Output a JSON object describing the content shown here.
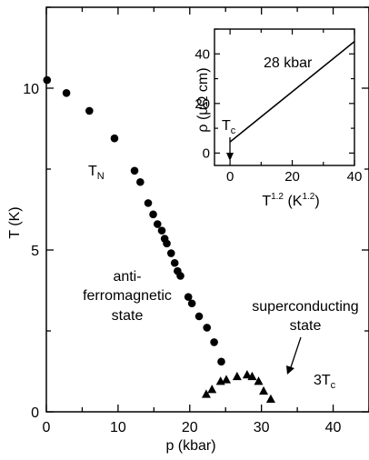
{
  "chart_data": [
    {
      "type": "scatter",
      "xlabel": "p (kbar)",
      "ylabel": "T (K)",
      "xlim": [
        0,
        45
      ],
      "ylim": [
        0,
        12.5
      ],
      "x_ticks": [
        "0",
        "10",
        "20",
        "30",
        "40"
      ],
      "y_ticks": [
        "0",
        "5",
        "10"
      ],
      "grid": false,
      "series": [
        {
          "name": "T_N",
          "marker": "circle",
          "points": [
            [
              0.1,
              10.25
            ],
            [
              2.8,
              9.85
            ],
            [
              6.0,
              9.3
            ],
            [
              9.5,
              8.45
            ],
            [
              12.3,
              7.45
            ],
            [
              13.1,
              7.1
            ],
            [
              14.2,
              6.45
            ],
            [
              14.9,
              6.1
            ],
            [
              15.5,
              5.8
            ],
            [
              16.1,
              5.6
            ],
            [
              16.5,
              5.35
            ],
            [
              16.8,
              5.2
            ],
            [
              17.4,
              4.9
            ],
            [
              17.9,
              4.6
            ],
            [
              18.3,
              4.35
            ],
            [
              18.7,
              4.2
            ],
            [
              19.8,
              3.55
            ],
            [
              20.3,
              3.35
            ],
            [
              21.3,
              2.95
            ],
            [
              22.4,
              2.6
            ],
            [
              23.4,
              2.15
            ],
            [
              24.4,
              1.55
            ]
          ]
        },
        {
          "name": "3T_c",
          "marker": "triangle",
          "points": [
            [
              22.3,
              0.55
            ],
            [
              23.1,
              0.7
            ],
            [
              24.3,
              0.95
            ],
            [
              25.1,
              1.0
            ],
            [
              26.6,
              1.1
            ],
            [
              28.0,
              1.15
            ],
            [
              28.7,
              1.1
            ],
            [
              29.6,
              0.95
            ],
            [
              30.3,
              0.65
            ],
            [
              31.3,
              0.4
            ]
          ]
        }
      ],
      "annotations": {
        "tn": [
          "T",
          "N"
        ],
        "afm": [
          "anti-",
          "ferromagnetic",
          "state"
        ],
        "sc": [
          "superconducting",
          "state"
        ],
        "tc3": [
          "3T",
          "c"
        ]
      }
    },
    {
      "type": "line",
      "inset": true,
      "title": "28 kbar",
      "xlabel": [
        "T",
        "1.2",
        " (K",
        "1.2",
        ")"
      ],
      "ylabel": [
        "ρ (μΩ cm)"
      ],
      "xlim": [
        -5,
        40
      ],
      "ylim": [
        -5,
        50
      ],
      "x_ticks": [
        "0",
        "20",
        "40"
      ],
      "y_ticks": [
        "0",
        "20",
        "40"
      ],
      "series": [
        {
          "x": [
            0,
            40
          ],
          "y": [
            4.5,
            45
          ]
        }
      ],
      "annotation": [
        "T",
        "c"
      ]
    }
  ]
}
